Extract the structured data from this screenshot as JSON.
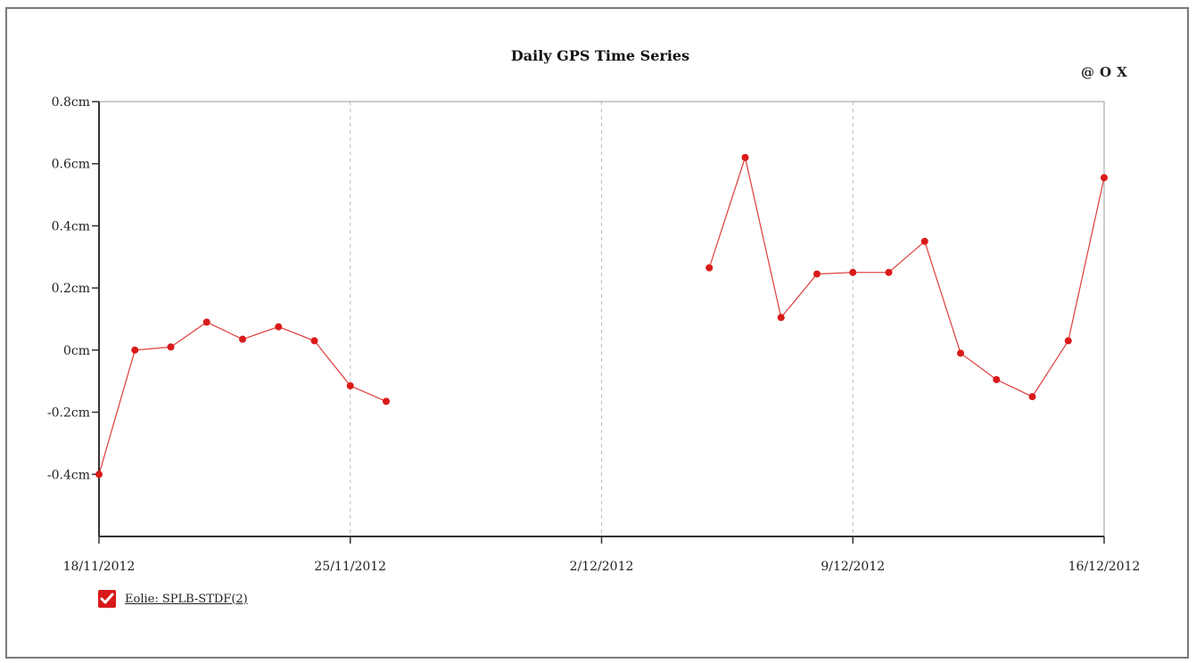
{
  "toolbar": {
    "zoom_label": "@",
    "reset_label": "O",
    "close_label": "X"
  },
  "legend": {
    "label": "Eolie: SPLB-STDF(2)"
  },
  "chart_data": {
    "type": "line",
    "title": "Daily GPS Time Series",
    "xlabel": "",
    "ylabel": "",
    "xlim": [
      "2012-11-18",
      "2012-12-16"
    ],
    "ylim": [
      -0.6,
      0.8
    ],
    "grid": "vertical dashed at x ticks",
    "x_ticks": [
      {
        "date": "2012-11-18",
        "label": "18/11/2012"
      },
      {
        "date": "2012-11-25",
        "label": "25/11/2012"
      },
      {
        "date": "2012-12-02",
        "label": "2/12/2012"
      },
      {
        "date": "2012-12-09",
        "label": "9/12/2012"
      },
      {
        "date": "2012-12-16",
        "label": "16/12/2012"
      }
    ],
    "y_ticks": [
      {
        "value": 0.8,
        "label": "0.8cm"
      },
      {
        "value": 0.6,
        "label": "0.6cm"
      },
      {
        "value": 0.4,
        "label": "0.4cm"
      },
      {
        "value": 0.2,
        "label": "0.2cm"
      },
      {
        "value": 0,
        "label": "0cm"
      },
      {
        "value": -0.2,
        "label": "-0.2cm"
      },
      {
        "value": -0.4,
        "label": "-0.4cm"
      }
    ],
    "series": [
      {
        "name": "Eolie: SPLB-STDF(2)",
        "color": "#d91a1a",
        "segments": [
          [
            {
              "x": "2012-11-18",
              "y": -0.4
            },
            {
              "x": "2012-11-19",
              "y": 0.0
            },
            {
              "x": "2012-11-20",
              "y": 0.01
            },
            {
              "x": "2012-11-21",
              "y": 0.09
            },
            {
              "x": "2012-11-22",
              "y": 0.035
            },
            {
              "x": "2012-11-23",
              "y": 0.075
            },
            {
              "x": "2012-11-24",
              "y": 0.03
            },
            {
              "x": "2012-11-25",
              "y": -0.115
            },
            {
              "x": "2012-11-26",
              "y": -0.165
            }
          ],
          [
            {
              "x": "2012-12-05",
              "y": 0.265
            },
            {
              "x": "2012-12-06",
              "y": 0.62
            },
            {
              "x": "2012-12-07",
              "y": 0.105
            },
            {
              "x": "2012-12-08",
              "y": 0.245
            },
            {
              "x": "2012-12-09",
              "y": 0.25
            },
            {
              "x": "2012-12-10",
              "y": 0.25
            },
            {
              "x": "2012-12-11",
              "y": 0.35
            },
            {
              "x": "2012-12-12",
              "y": -0.01
            },
            {
              "x": "2012-12-13",
              "y": -0.095
            },
            {
              "x": "2012-12-14",
              "y": -0.15
            },
            {
              "x": "2012-12-15",
              "y": 0.03
            },
            {
              "x": "2012-12-16",
              "y": 0.555
            }
          ]
        ]
      }
    ]
  }
}
